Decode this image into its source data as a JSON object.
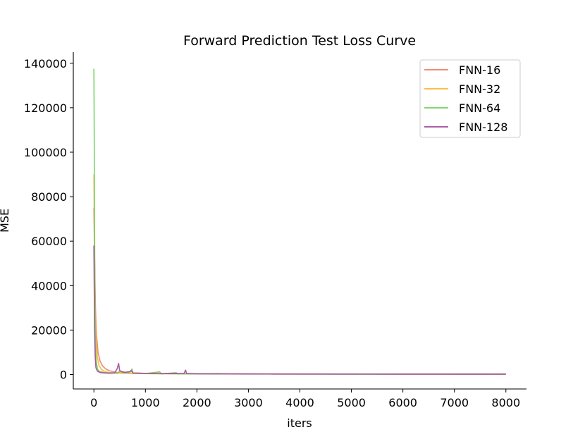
{
  "chart_data": {
    "type": "line",
    "title": "Forward Prediction Test Loss Curve",
    "xlabel": "iters",
    "ylabel": "MSE",
    "xlim": [
      -400,
      8400
    ],
    "ylim": [
      -6500,
      145000
    ],
    "xticks": [
      0,
      1000,
      2000,
      3000,
      4000,
      5000,
      6000,
      7000,
      8000
    ],
    "yticks": [
      0,
      20000,
      40000,
      60000,
      80000,
      100000,
      120000,
      140000
    ],
    "legend_position": "top-right",
    "grid": false,
    "series": [
      {
        "name": "FNN-16",
        "color": "#f07b65",
        "points": [
          [
            0,
            75000
          ],
          [
            15,
            50000
          ],
          [
            30,
            30000
          ],
          [
            50,
            18000
          ],
          [
            80,
            10000
          ],
          [
            120,
            6000
          ],
          [
            170,
            3800
          ],
          [
            230,
            2500
          ],
          [
            300,
            1700
          ],
          [
            400,
            1100
          ],
          [
            500,
            800
          ],
          [
            600,
            650
          ],
          [
            800,
            500
          ],
          [
            1000,
            420
          ],
          [
            1500,
            350
          ],
          [
            2000,
            300
          ],
          [
            3000,
            260
          ],
          [
            4000,
            230
          ],
          [
            5000,
            210
          ],
          [
            6000,
            200
          ],
          [
            7000,
            190
          ],
          [
            8000,
            180
          ]
        ]
      },
      {
        "name": "FNN-32",
        "color": "#fdb42f",
        "points": [
          [
            0,
            90000
          ],
          [
            12,
            55000
          ],
          [
            25,
            30000
          ],
          [
            45,
            15000
          ],
          [
            70,
            7500
          ],
          [
            100,
            4000
          ],
          [
            150,
            2200
          ],
          [
            220,
            1300
          ],
          [
            300,
            900
          ],
          [
            400,
            700
          ],
          [
            600,
            550
          ],
          [
            800,
            450
          ],
          [
            1200,
            380
          ],
          [
            2000,
            320
          ],
          [
            3000,
            270
          ],
          [
            4000,
            240
          ],
          [
            5000,
            220
          ],
          [
            6000,
            210
          ],
          [
            7000,
            200
          ],
          [
            8000,
            190
          ]
        ]
      },
      {
        "name": "FNN-64",
        "color": "#6fcf5c",
        "points": [
          [
            0,
            137500
          ],
          [
            6,
            110000
          ],
          [
            12,
            70000
          ],
          [
            20,
            35000
          ],
          [
            30,
            15000
          ],
          [
            45,
            6000
          ],
          [
            70,
            2500
          ],
          [
            100,
            1500
          ],
          [
            200,
            900
          ],
          [
            300,
            700
          ],
          [
            400,
            800
          ],
          [
            450,
            500
          ],
          [
            500,
            1500
          ],
          [
            600,
            700
          ],
          [
            700,
            1000
          ],
          [
            740,
            2500
          ],
          [
            760,
            600
          ],
          [
            900,
            500
          ],
          [
            1000,
            400
          ],
          [
            1280,
            1200
          ],
          [
            1300,
            300
          ],
          [
            1600,
            800
          ],
          [
            1620,
            300
          ],
          [
            2000,
            280
          ],
          [
            2400,
            400
          ],
          [
            2600,
            250
          ],
          [
            3000,
            230
          ],
          [
            4000,
            200
          ],
          [
            5000,
            190
          ],
          [
            6000,
            180
          ],
          [
            7000,
            170
          ],
          [
            8000,
            160
          ]
        ]
      },
      {
        "name": "FNN-128",
        "color": "#a0499b",
        "points": [
          [
            0,
            58000
          ],
          [
            6,
            40000
          ],
          [
            14,
            20000
          ],
          [
            25,
            8000
          ],
          [
            40,
            3000
          ],
          [
            70,
            1500
          ],
          [
            120,
            900
          ],
          [
            200,
            700
          ],
          [
            300,
            600
          ],
          [
            400,
            700
          ],
          [
            450,
            2500
          ],
          [
            480,
            5000
          ],
          [
            500,
            1800
          ],
          [
            550,
            1200
          ],
          [
            600,
            1000
          ],
          [
            700,
            1300
          ],
          [
            720,
            1800
          ],
          [
            760,
            700
          ],
          [
            900,
            600
          ],
          [
            1000,
            500
          ],
          [
            1300,
            450
          ],
          [
            1500,
            400
          ],
          [
            1750,
            500
          ],
          [
            1780,
            2000
          ],
          [
            1800,
            450
          ],
          [
            2000,
            350
          ],
          [
            2200,
            300
          ],
          [
            2500,
            280
          ],
          [
            3000,
            250
          ],
          [
            3500,
            230
          ],
          [
            4000,
            220
          ],
          [
            5000,
            200
          ],
          [
            6000,
            190
          ],
          [
            7000,
            180
          ],
          [
            8000,
            170
          ]
        ]
      }
    ]
  }
}
